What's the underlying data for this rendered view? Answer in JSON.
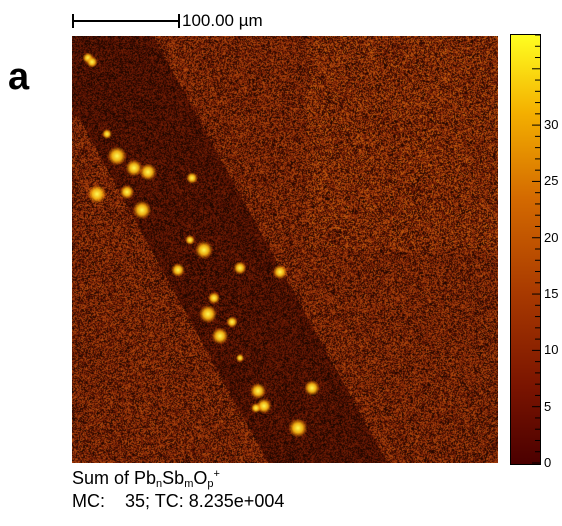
{
  "panel": {
    "label": "a"
  },
  "scale_bar": {
    "label": "100.00 µm"
  },
  "image": {
    "description_name": "ion-intensity-map",
    "colors": {
      "dark": "#3a0c02",
      "mid": "#9a3a08",
      "bright": "#ffff20"
    }
  },
  "colorbar": {
    "min": 0,
    "max": 38,
    "tick_labels": [
      "0",
      "5",
      "10",
      "15",
      "20",
      "25",
      "30"
    ],
    "tick_values": [
      0,
      5,
      10,
      15,
      20,
      25,
      30
    ]
  },
  "caption": {
    "formula_prefix": "Sum of Pb",
    "formula_sub1": "n",
    "formula_mid1": "Sb",
    "formula_sub2": "m",
    "formula_mid2": "O",
    "formula_sub3": "p",
    "formula_sup": "+",
    "mc_label": "MC:",
    "mc_value": "35",
    "tc_label": "TC:",
    "tc_value": "8.235e+004"
  }
}
